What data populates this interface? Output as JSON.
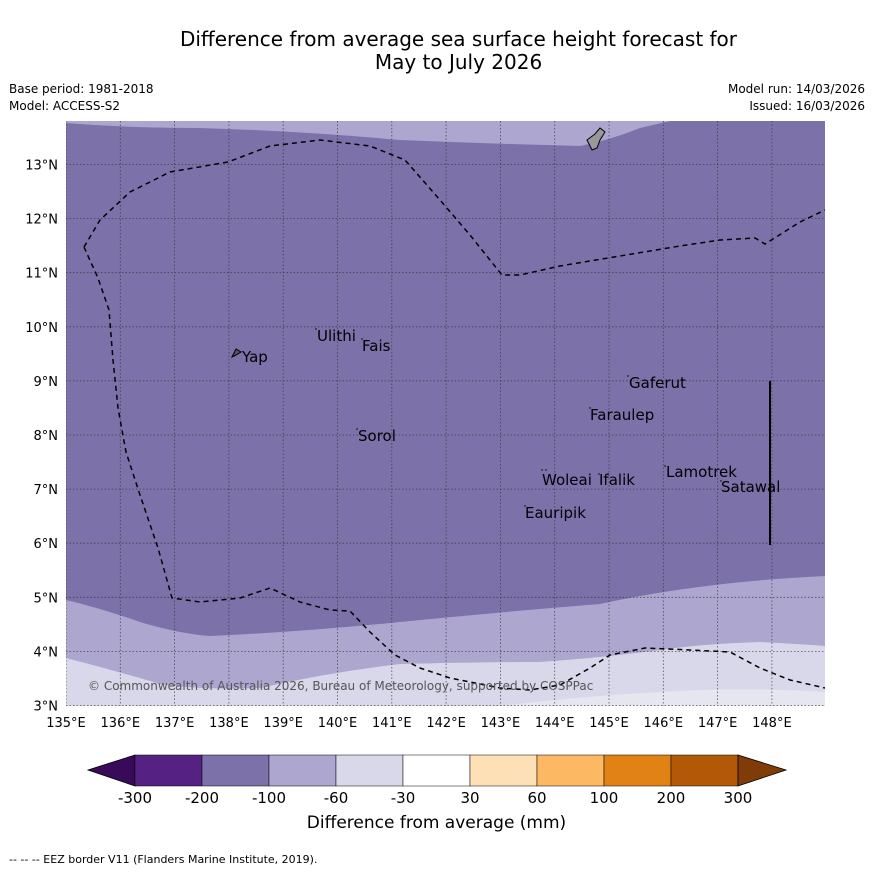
{
  "title_line1": "Difference from average sea surface height forecast for",
  "title_line2": "May to July 2026",
  "base_period": "Base period: 1981-2018",
  "model": "Model: ACCESS-S2",
  "model_run": "Model run: 14/03/2026",
  "issued": "Issued: 16/03/2026",
  "copyright": "© Commonwealth of Australia 2026, Bureau of Meteorology, supported by COSPPac",
  "lat_labels": [
    "13°N",
    "12°N",
    "11°N",
    "10°N",
    "9°N",
    "8°N",
    "7°N",
    "6°N",
    "5°N",
    "4°N",
    "3°N"
  ],
  "lon_labels": [
    "135°E",
    "136°E",
    "137°E",
    "138°E",
    "139°E",
    "140°E",
    "141°E",
    "142°E",
    "143°E",
    "144°E",
    "145°E",
    "146°E",
    "147°E",
    "148°E"
  ],
  "places": {
    "yap": "Yap",
    "ulithi": "Ulithi",
    "fais": "Fais",
    "gaferut": "Gaferut",
    "faraulep": "Faraulep",
    "sorol": "Sorol",
    "lamotrek": "Lamotrek",
    "satawal": "Satawal",
    "woleai": "Woleai",
    "ifalik": "Ifalik",
    "eauripik": "Eauripik"
  },
  "legend": {
    "ticks": [
      "-300",
      "-200",
      "-100",
      "-60",
      "-30",
      "30",
      "60",
      "100",
      "200",
      "300"
    ],
    "title": "Difference from average (mm)",
    "colors": {
      "below_min": "#3a0a5a",
      "c1": "#552283",
      "c2": "#7d71aa",
      "c3": "#ada6cf",
      "c4": "#d8d8ea",
      "c5": "#ffffff",
      "c6": "#fee0b6",
      "c7": "#fdb863",
      "c8": "#e08214",
      "c9": "#b35806",
      "above_max": "#7f3b08"
    }
  },
  "footnote": "--  --  -- EEZ border V11 (Flanders Marine Institute, 2019)."
}
